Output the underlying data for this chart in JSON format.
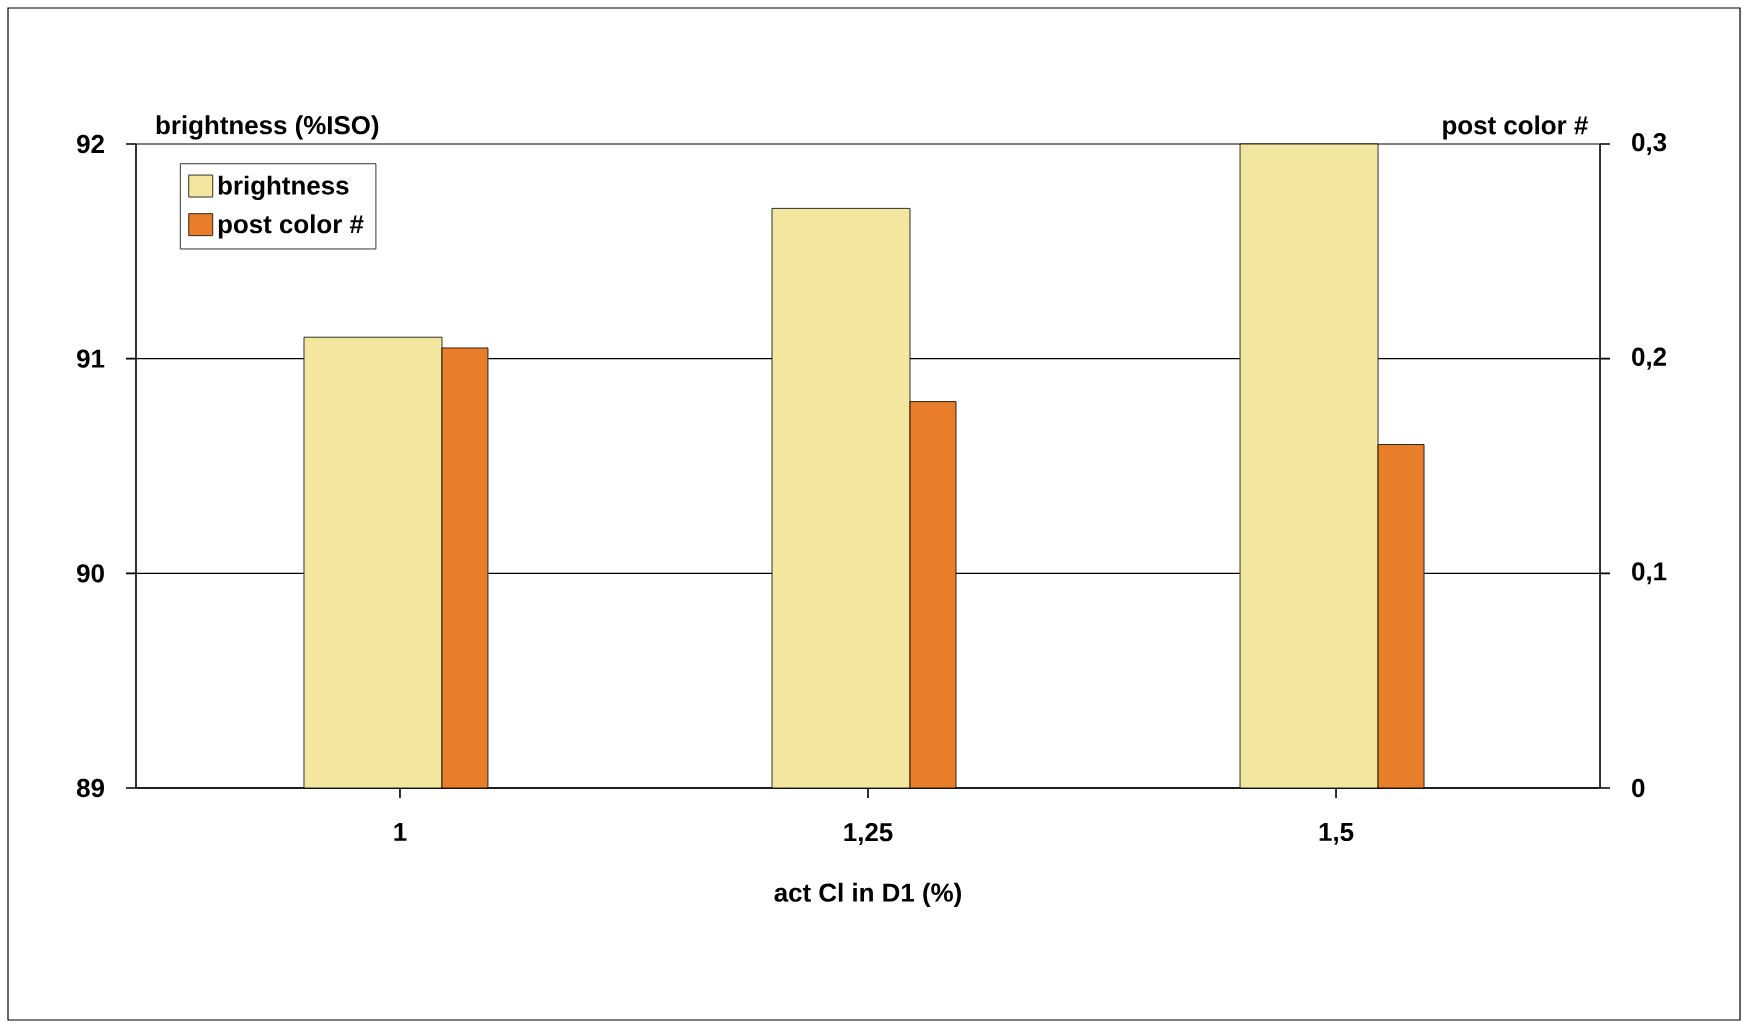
{
  "chart_data": {
    "type": "bar",
    "xlabel": "act Cl in D1 (%)",
    "ylabel": "brightness (%ISO)",
    "y2label": "post color #",
    "categories": [
      "1",
      "1,25",
      "1,5"
    ],
    "series": [
      {
        "name": "brightness",
        "color": "#f3e7a0",
        "values": [
          91.1,
          91.7,
          92.0
        ]
      },
      {
        "name": "post color #",
        "color": "#e87d2a",
        "axis": "y2",
        "values": [
          0.205,
          0.18,
          0.16
        ]
      }
    ],
    "ylim": [
      89,
      92
    ],
    "yticks": [
      89,
      90,
      91,
      92
    ],
    "y2lim": [
      0,
      0.3
    ],
    "y2ticks": [
      0,
      {
        "value": 0.1,
        "label": "0,1"
      },
      {
        "value": 0.2,
        "label": "0,2"
      },
      {
        "value": 0.3,
        "label": "0,3"
      }
    ],
    "grid": "y",
    "legend": "top left"
  }
}
